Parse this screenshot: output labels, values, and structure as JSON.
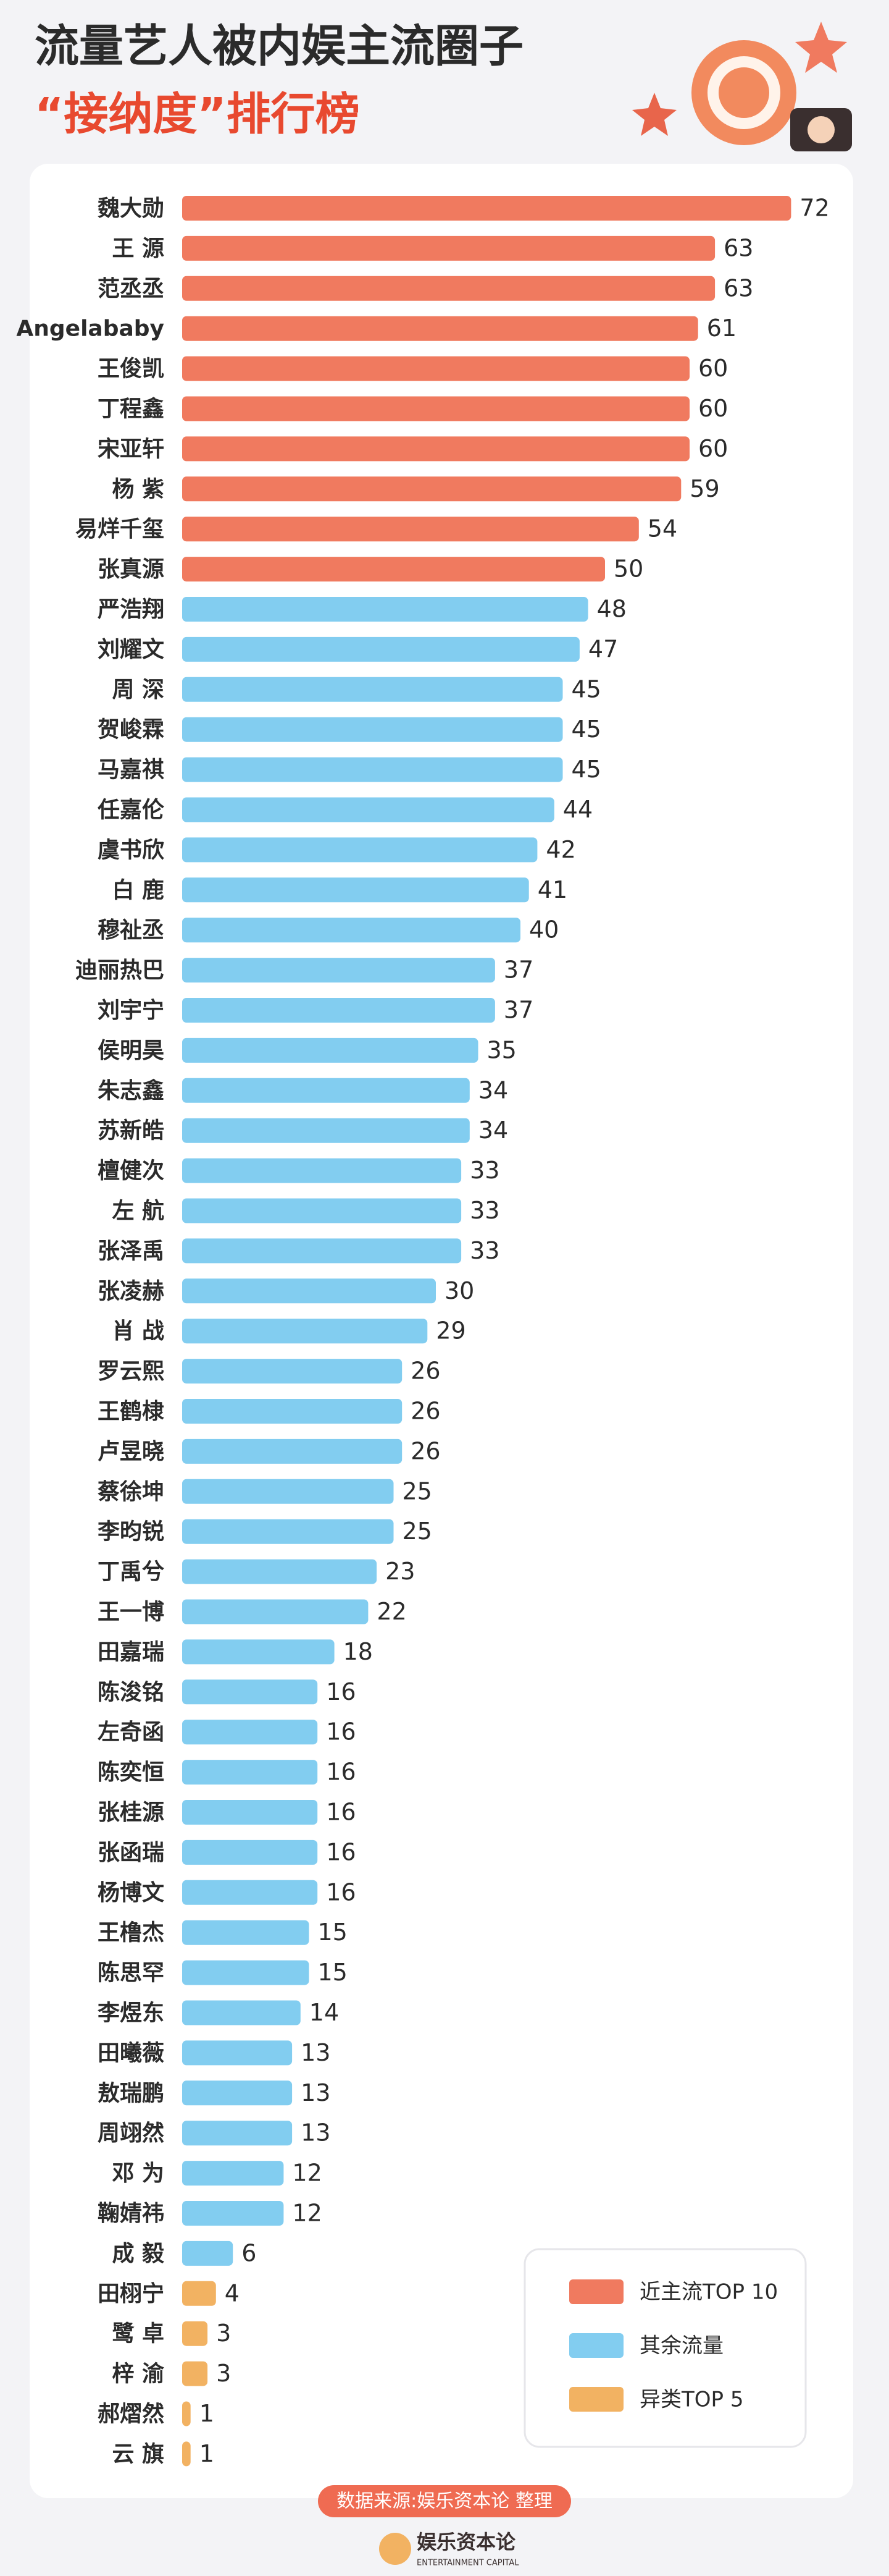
{
  "chart_data": {
    "type": "bar",
    "orientation": "horizontal",
    "title": "流量艺人被内娱主流圈子",
    "subtitle": "“接纳度”排行榜",
    "series": [
      {
        "name": "近主流TOP 10",
        "color": "#f07a5f",
        "categories": [
          "魏大勋",
          "王 源",
          "范丞丞",
          "Angelababy",
          "王俊凯",
          "丁程鑫",
          "宋亚轩",
          "杨 紫",
          "易烊千玺",
          "张真源"
        ],
        "values": [
          72,
          63,
          63,
          61,
          60,
          60,
          60,
          59,
          54,
          50
        ]
      },
      {
        "name": "其余流量",
        "color": "#82cdf0",
        "categories": [
          "严浩翔",
          "刘耀文",
          "周 深",
          "贺峻霖",
          "马嘉祺",
          "任嘉伦",
          "虞书欣",
          "白 鹿",
          "穆祉丞",
          "迪丽热巴",
          "刘宇宁",
          "侯明昊",
          "朱志鑫",
          "苏新皓",
          "檀健次",
          "左 航",
          "张泽禹",
          "张凌赫",
          "肖 战",
          "罗云熙",
          "王鹤棣",
          "卢昱晓",
          "蔡徐坤",
          "李昀锐",
          "丁禹兮",
          "王一博",
          "田嘉瑞",
          "陈浚铭",
          "左奇函",
          "陈奕恒",
          "张桂源",
          "张函瑞",
          "杨博文",
          "王橹杰",
          "陈思罕",
          "李煜东",
          "田曦薇",
          "敖瑞鹏",
          "周翊然",
          "邓 为",
          "鞠婧祎",
          "成 毅"
        ],
        "values": [
          48,
          47,
          45,
          45,
          45,
          44,
          42,
          41,
          40,
          37,
          37,
          35,
          34,
          34,
          33,
          33,
          33,
          30,
          29,
          26,
          26,
          26,
          25,
          25,
          23,
          22,
          18,
          16,
          16,
          16,
          16,
          16,
          16,
          15,
          15,
          14,
          13,
          13,
          13,
          12,
          12,
          6
        ]
      },
      {
        "name": "异类TOP 5",
        "color": "#f2b262",
        "categories": [
          "田栩宁",
          "鹭 卓",
          "梓 渝",
          "郝熠然",
          "云 旗"
        ],
        "values": [
          4,
          3,
          3,
          1,
          1
        ]
      }
    ],
    "legend": "bottom-right",
    "source": "数据来源:娱乐资本论 整理",
    "logo": {
      "name": "娱乐资本论",
      "tagline": "ENTERTAINMENT CAPITAL"
    }
  }
}
